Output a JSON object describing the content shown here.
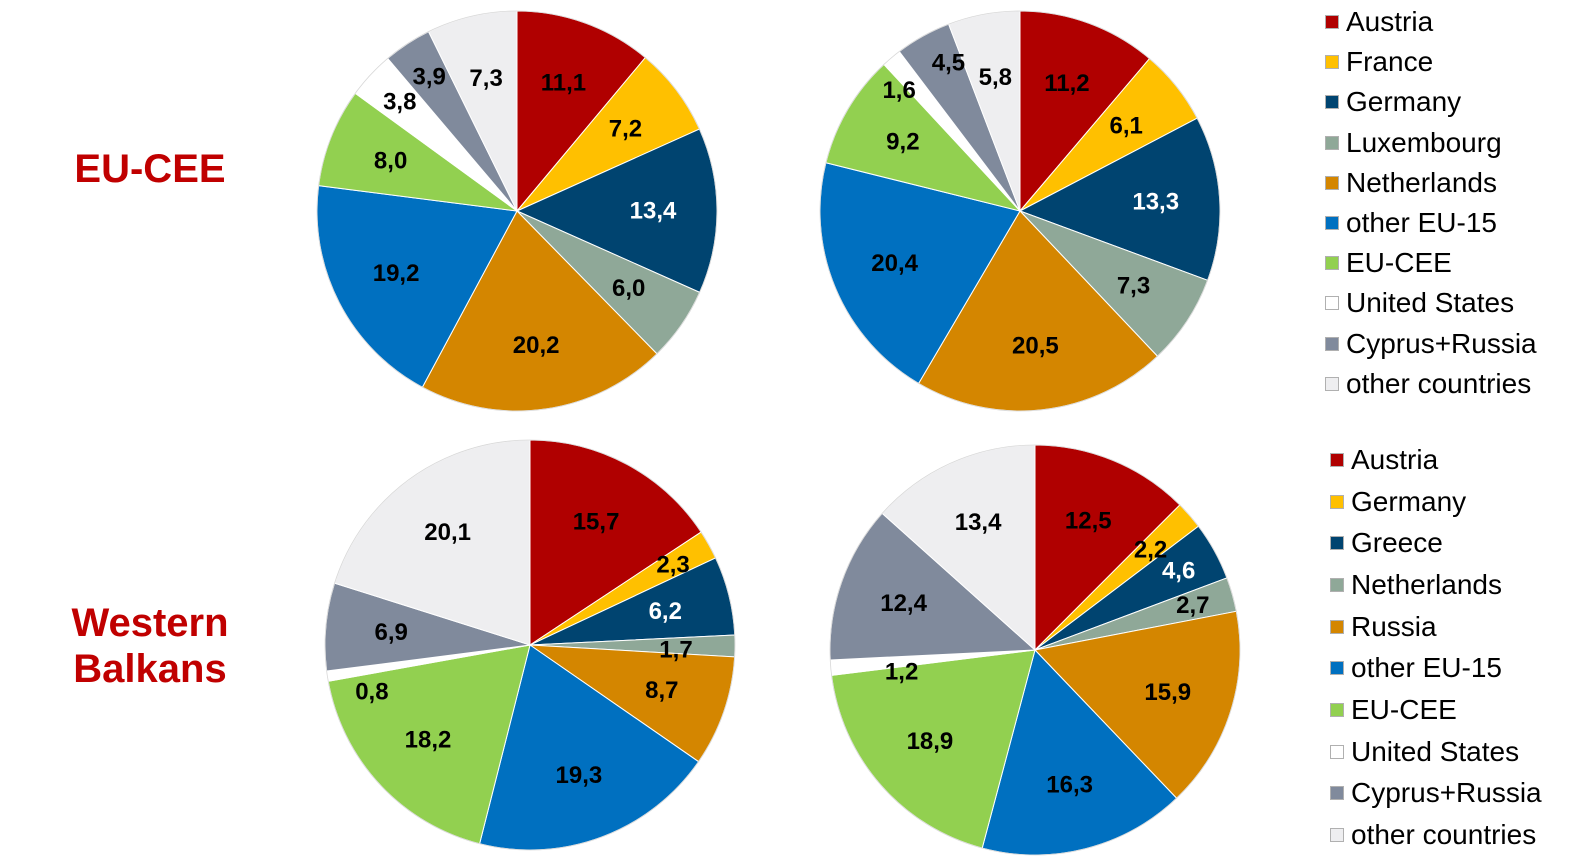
{
  "row_labels": {
    "eu_cee": [
      "EU-CEE"
    ],
    "western_balkans": [
      "Western",
      "Balkans"
    ]
  },
  "legends": {
    "top": [
      "Austria",
      "France",
      "Germany",
      "Luxembourg",
      "Netherlands",
      "other EU-15",
      "EU-CEE",
      "United States",
      "Cyprus+Russia",
      "other countries"
    ],
    "bottom": [
      "Austria",
      "Germany",
      "Greece",
      "Netherlands",
      "Russia",
      "other EU-15",
      "EU-CEE",
      "United States",
      "Cyprus+Russia",
      "other countries"
    ]
  },
  "colors": [
    "#b00000",
    "#ffc000",
    "#004470",
    "#8fa898",
    "#d48600",
    "#0070c0",
    "#92d050",
    "#ffffff",
    "#808a9c",
    "#eeeef0"
  ],
  "white_label_color": "#ffffff",
  "chart_data": [
    {
      "type": "pie",
      "group": "EU-CEE",
      "categories": [
        "Austria",
        "France",
        "Germany",
        "Luxembourg",
        "Netherlands",
        "other EU-15",
        "EU-CEE",
        "United States",
        "Cyprus+Russia",
        "other countries"
      ],
      "values": [
        11.1,
        7.2,
        13.4,
        6.0,
        20.2,
        19.2,
        8.0,
        3.8,
        3.9,
        7.3
      ],
      "labels": [
        "11,1",
        "7,2",
        "13,4",
        "6,0",
        "20,2",
        "19,2",
        "8,0",
        "3,8",
        "3,9",
        "7,3"
      ],
      "white_labels": [
        2
      ]
    },
    {
      "type": "pie",
      "group": "EU-CEE",
      "categories": [
        "Austria",
        "France",
        "Germany",
        "Luxembourg",
        "Netherlands",
        "other EU-15",
        "EU-CEE",
        "United States",
        "Cyprus+Russia",
        "other countries"
      ],
      "values": [
        11.2,
        6.1,
        13.3,
        7.3,
        20.5,
        20.4,
        9.2,
        1.6,
        4.5,
        5.8
      ],
      "labels": [
        "11,2",
        "6,1",
        "13,3",
        "7,3",
        "20,5",
        "20,4",
        "9,2",
        "1,6",
        "4,5",
        "5,8"
      ],
      "white_labels": [
        2
      ]
    },
    {
      "type": "pie",
      "group": "Western Balkans",
      "categories": [
        "Austria",
        "Germany",
        "Greece",
        "Netherlands",
        "Russia",
        "other EU-15",
        "EU-CEE",
        "United States",
        "Cyprus+Russia",
        "other countries"
      ],
      "values": [
        15.7,
        2.3,
        6.2,
        1.7,
        8.7,
        19.3,
        18.2,
        0.8,
        6.9,
        20.1
      ],
      "labels": [
        "15,7",
        "2,3",
        "6,2",
        "1,7",
        "8,7",
        "19,3",
        "18,2",
        "0,8",
        "6,9",
        "20,1"
      ],
      "white_labels": [
        2
      ]
    },
    {
      "type": "pie",
      "group": "Western Balkans",
      "categories": [
        "Austria",
        "Germany",
        "Greece",
        "Netherlands",
        "Russia",
        "other EU-15",
        "EU-CEE",
        "United States",
        "Cyprus+Russia",
        "other countries"
      ],
      "values": [
        12.5,
        2.2,
        4.6,
        2.7,
        15.9,
        16.3,
        18.9,
        1.2,
        12.4,
        13.4
      ],
      "labels": [
        "12,5",
        "2,2",
        "4,6",
        "2,7",
        "15,9",
        "16,3",
        "18,9",
        "1,2",
        "12,4",
        "13,4"
      ],
      "white_labels": [
        2
      ]
    }
  ]
}
